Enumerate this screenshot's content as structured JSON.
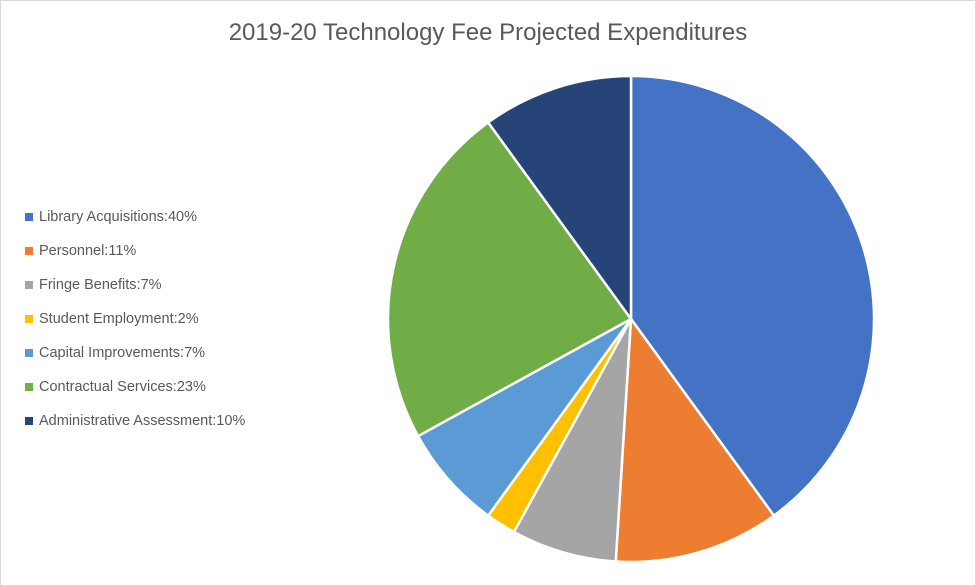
{
  "chart_data": {
    "type": "pie",
    "title": "2019-20 Technology Fee Projected Expenditures",
    "legend_position": "left",
    "start_angle": "12 o'clock, clockwise",
    "slices": [
      {
        "label": "Library Acquisitions",
        "value": 40,
        "display": "40%",
        "color": "#4472C4"
      },
      {
        "label": "Personnel",
        "value": 11,
        "display": "11%",
        "color": "#ED7D31"
      },
      {
        "label": "Fringe Benefits",
        "value": 7,
        "display": "7%",
        "color": "#A5A5A5"
      },
      {
        "label": "Student Employment",
        "value": 2,
        "display": "2%",
        "color": "#FFC000"
      },
      {
        "label": "Capital Improvements",
        "value": 7,
        "display": "7%",
        "color": "#5B9BD5"
      },
      {
        "label": "Contractual Services",
        "value": 23,
        "display": "23%",
        "color": "#70AD47"
      },
      {
        "label": "Administrative Assessment",
        "value": 10,
        "display": "10%",
        "color": "#264478"
      }
    ]
  }
}
